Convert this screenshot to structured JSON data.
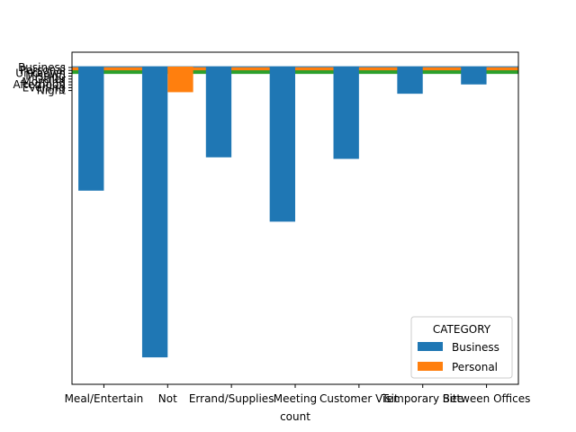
{
  "chart_data": {
    "type": "bar",
    "xlabel": "count",
    "categories": [
      "Meal/Entertain",
      "Not",
      "Errand/Supplies",
      "Meeting",
      "Customer Visit",
      "Temporary Site",
      "Between Offices"
    ],
    "series": [
      {
        "name": "Business",
        "color": "#1f77b4",
        "values": [
          160,
          375,
          117,
          200,
          119,
          35,
          23
        ]
      },
      {
        "name": "Personal",
        "color": "#ff7f0e",
        "values": [
          0,
          33,
          0,
          0,
          0,
          0,
          0
        ]
      }
    ],
    "ylim": [
      0,
      390
    ],
    "y_ticklabels": [
      "Business",
      "Personal",
      "Unknown",
      "Missing",
      "Other",
      "Morning",
      "Afternoon",
      "Evening",
      "Night"
    ],
    "overlay_lines": [
      {
        "color": "#1f77b4",
        "value": 1
      },
      {
        "color": "#ff7f0e",
        "value": 6
      },
      {
        "color": "#ff7f0e",
        "value": 9
      },
      {
        "color": "#ff7f0e",
        "value": 12
      },
      {
        "color": "#ff7f0e",
        "value": 15
      },
      {
        "color": "#ff7f0e",
        "value": 17
      },
      {
        "color": "#2ca02c",
        "value": 20
      },
      {
        "color": "#2ca02c",
        "value": 23
      },
      {
        "color": "#2ca02c",
        "value": 27
      },
      {
        "color": "#2ca02c",
        "value": 31
      }
    ],
    "legend": {
      "title": "CATEGORY",
      "position": "lower-right"
    }
  }
}
